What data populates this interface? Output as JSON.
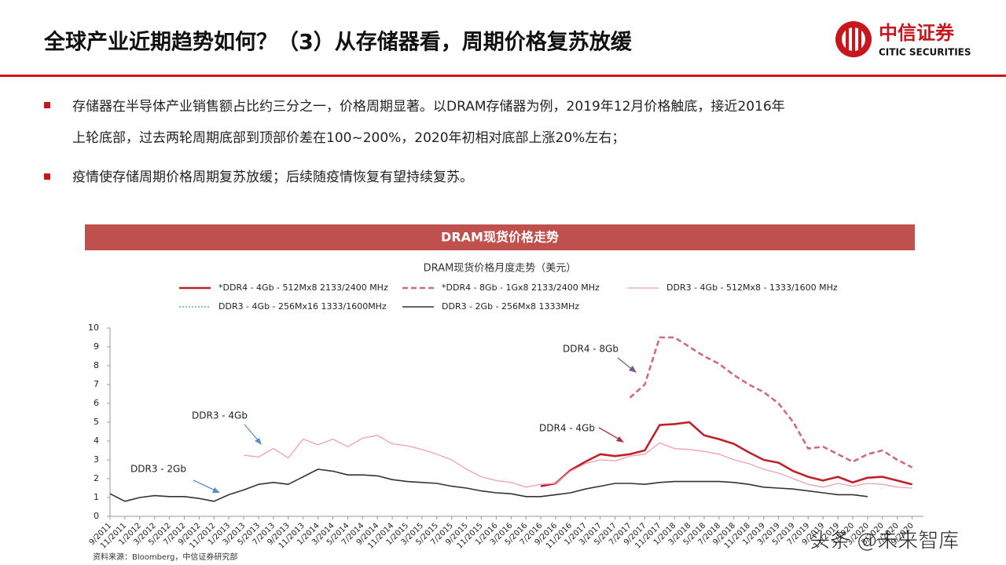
{
  "header": {
    "title": "全球产业近期趋势如何？（3）从存储器看，周期价格复苏放缓",
    "logo_cn": "中信证券",
    "logo_en": "CITIC SECURITIES"
  },
  "bullets": [
    "存储器在半导体产业销售额占比约三分之一，价格周期显著。以DRAM存储器为例，2019年12月价格触底，接近2016年",
    "上轮底部，过去两轮周期底部到顶部价差在100~200%，2020年初相对底部上涨20%左右；",
    "疫情使存储周期价格周期复苏放缓；后续随疫情恢复有望持续复苏。"
  ],
  "source": "资料来源：Bloomberg，中信证券研究部",
  "watermark": "头条 @未来智库",
  "chart_data": {
    "type": "line",
    "title": "DRAM现货价格走势",
    "subtitle": "DRAM现货价格月度走势（美元）",
    "categories": [
      "9/2011",
      "11/2011",
      "1/2012",
      "3/2012",
      "5/2012",
      "7/2012",
      "9/2012",
      "11/2012",
      "1/2013",
      "3/2013",
      "5/2013",
      "7/2013",
      "9/2013",
      "11/2013",
      "1/2014",
      "3/2014",
      "5/2014",
      "7/2014",
      "9/2014",
      "11/2014",
      "1/2015",
      "3/2015",
      "5/2015",
      "7/2015",
      "9/2015",
      "11/2015",
      "1/2016",
      "3/2016",
      "5/2016",
      "7/2016",
      "9/2016",
      "11/2016",
      "1/2017",
      "3/2017",
      "5/2017",
      "7/2017",
      "9/2017",
      "11/2017",
      "1/2018",
      "3/2018",
      "5/2018",
      "7/2018",
      "9/2018",
      "11/2018",
      "1/2019",
      "3/2019",
      "5/2019",
      "7/2019",
      "9/2019",
      "11/2019",
      "1/2020",
      "3/2020",
      "5/2020",
      "7/2020",
      "9/2020"
    ],
    "ylim": [
      0,
      10
    ],
    "yticks": [
      0,
      1,
      2,
      3,
      4,
      5,
      6,
      7,
      8,
      9,
      10
    ],
    "series": [
      {
        "name": "*DDR4 - 4Gb - 512Mx8 2133/2400 MHz",
        "color": "#c0202a",
        "style": "solid-thick",
        "values": [
          null,
          null,
          null,
          null,
          null,
          null,
          null,
          null,
          null,
          null,
          null,
          null,
          null,
          null,
          null,
          null,
          null,
          null,
          null,
          null,
          null,
          null,
          null,
          null,
          null,
          null,
          null,
          null,
          null,
          1.6,
          1.75,
          2.45,
          2.9,
          3.3,
          3.2,
          3.3,
          3.5,
          4.85,
          4.9,
          5.0,
          4.3,
          4.1,
          3.85,
          3.4,
          3.0,
          2.85,
          2.4,
          2.1,
          1.9,
          2.1,
          1.8,
          2.05,
          2.1,
          1.9,
          1.7
        ]
      },
      {
        "name": "*DDR4 - 8Gb - 1Gx8 2133/2400 MHz",
        "color": "#d06a7e",
        "style": "dashed",
        "values": [
          null,
          null,
          null,
          null,
          null,
          null,
          null,
          null,
          null,
          null,
          null,
          null,
          null,
          null,
          null,
          null,
          null,
          null,
          null,
          null,
          null,
          null,
          null,
          null,
          null,
          null,
          null,
          null,
          null,
          null,
          null,
          null,
          null,
          null,
          null,
          6.3,
          7.0,
          9.5,
          9.5,
          9.0,
          8.5,
          8.1,
          7.5,
          7.0,
          6.6,
          6.0,
          5.0,
          3.6,
          3.7,
          3.3,
          2.9,
          3.3,
          3.5,
          3.0,
          2.6
        ]
      },
      {
        "name": "DDR3 - 4Gb - 512Mx8 - 1333/1600 MHz",
        "color": "#f0a0b0",
        "style": "solid",
        "values": [
          null,
          null,
          null,
          null,
          null,
          null,
          null,
          null,
          null,
          3.25,
          3.15,
          3.6,
          3.1,
          4.1,
          3.8,
          4.1,
          3.7,
          4.15,
          4.3,
          3.85,
          3.75,
          3.55,
          3.3,
          3.0,
          2.5,
          2.1,
          1.9,
          1.8,
          1.55,
          1.7,
          1.75,
          2.4,
          2.8,
          3.0,
          2.95,
          3.2,
          3.3,
          3.9,
          3.6,
          3.55,
          3.45,
          3.3,
          3.0,
          2.8,
          2.5,
          2.3,
          2.0,
          1.7,
          1.55,
          1.75,
          1.6,
          1.75,
          1.7,
          1.55,
          1.5
        ]
      },
      {
        "name": "DDR3 - 4Gb - 256Mx16 1333/1600MHz",
        "color": "#5b8fa8",
        "style": "dotted",
        "values": [
          null,
          null,
          null,
          null,
          null,
          null,
          null,
          null,
          null,
          null,
          null,
          null,
          null,
          null,
          null,
          null,
          null,
          null,
          null,
          null,
          null,
          null,
          null,
          null,
          null,
          null,
          null,
          null,
          null,
          null,
          null,
          null,
          null,
          null,
          null,
          null,
          null,
          null,
          null,
          null,
          null,
          null,
          null,
          null,
          null,
          null,
          null,
          null,
          null,
          null,
          null,
          null,
          null,
          null,
          null
        ]
      },
      {
        "name": "DDR3 - 2Gb - 256Mx8 1333MHz",
        "color": "#333333",
        "style": "solid-mid",
        "values": [
          1.2,
          0.8,
          1.0,
          1.1,
          1.05,
          1.05,
          0.95,
          0.8,
          1.15,
          1.4,
          1.7,
          1.8,
          1.7,
          2.1,
          2.5,
          2.4,
          2.2,
          2.2,
          2.15,
          1.95,
          1.85,
          1.8,
          1.75,
          1.6,
          1.5,
          1.35,
          1.25,
          1.2,
          1.05,
          1.05,
          1.15,
          1.25,
          1.45,
          1.6,
          1.75,
          1.75,
          1.7,
          1.8,
          1.85,
          1.85,
          1.85,
          1.85,
          1.8,
          1.7,
          1.55,
          1.5,
          1.45,
          1.35,
          1.25,
          1.15,
          1.15,
          1.05,
          null,
          null,
          null
        ]
      }
    ],
    "annotations": [
      "DDR4 - 8Gb",
      "DDR4 - 4Gb",
      "DDR3 - 4Gb",
      "DDR3 - 2Gb"
    ]
  }
}
